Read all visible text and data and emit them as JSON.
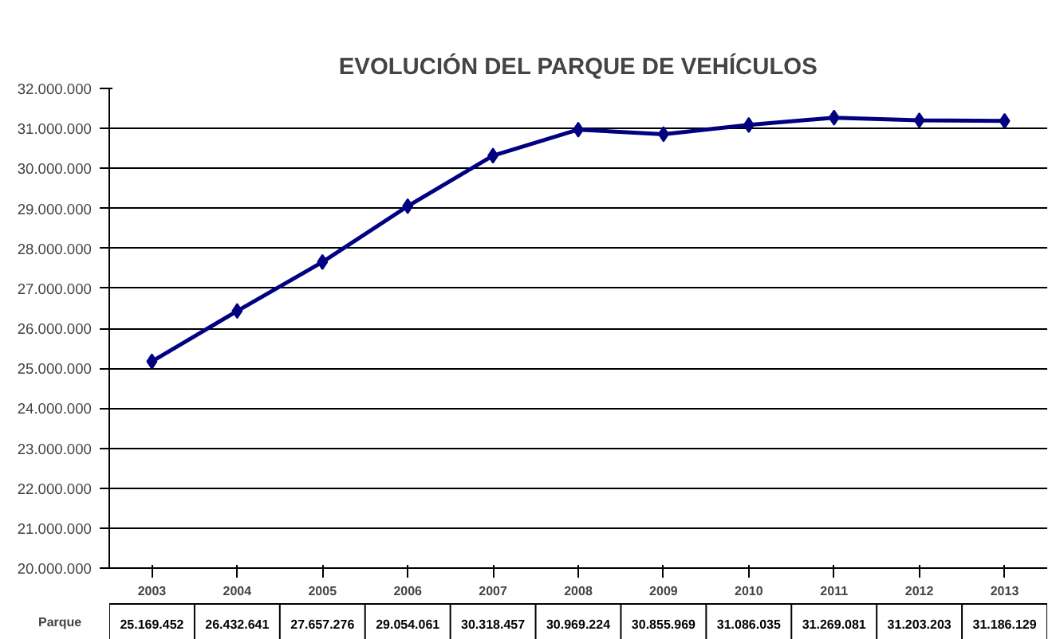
{
  "chart_data": {
    "type": "line",
    "title": "EVOLUCIÓN DEL PARQUE DE VEHÍCULOS",
    "categories": [
      "2003",
      "2004",
      "2005",
      "2006",
      "2007",
      "2008",
      "2009",
      "2010",
      "2011",
      "2012",
      "2013"
    ],
    "series": [
      {
        "name": "Parque",
        "color": "#000080",
        "values": [
          25169452,
          26432641,
          27657276,
          29054061,
          30318457,
          30969224,
          30855969,
          31086035,
          31269081,
          31203203,
          31186129
        ],
        "value_labels": [
          "25.169.452",
          "26.432.641",
          "27.657.276",
          "29.054.061",
          "30.318.457",
          "30.969.224",
          "30.855.969",
          "31.086.035",
          "31.269.081",
          "31.203.203",
          "31.186.129"
        ]
      }
    ],
    "ylim": [
      20000000,
      32000000
    ],
    "yticks": [
      {
        "value": 20000000,
        "label": "20.000.000"
      },
      {
        "value": 21000000,
        "label": "21.000.000"
      },
      {
        "value": 22000000,
        "label": "22.000.000"
      },
      {
        "value": 23000000,
        "label": "23.000.000"
      },
      {
        "value": 24000000,
        "label": "24.000.000"
      },
      {
        "value": 25000000,
        "label": "25.000.000"
      },
      {
        "value": 26000000,
        "label": "26.000.000"
      },
      {
        "value": 27000000,
        "label": "27.000.000"
      },
      {
        "value": 28000000,
        "label": "28.000.000"
      },
      {
        "value": 29000000,
        "label": "29.000.000"
      },
      {
        "value": 30000000,
        "label": "30.000.000"
      },
      {
        "value": 31000000,
        "label": "31.000.000"
      },
      {
        "value": 32000000,
        "label": "32.000.000"
      }
    ],
    "grid": "y",
    "marker": "diamond",
    "line_style": "solid",
    "legend": "bottom left"
  }
}
